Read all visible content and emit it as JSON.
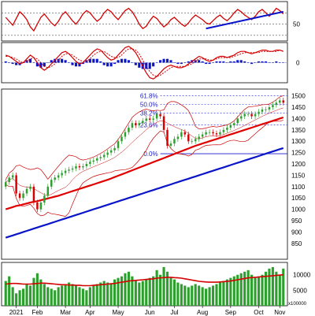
{
  "chart_data": [
    {
      "panel": "rsi",
      "type": "line",
      "y_ticks": [
        "50"
      ],
      "reference_levels": [
        70,
        50,
        30
      ],
      "series": [
        {
          "color": "#d40000",
          "values": [
            62,
            55,
            48,
            60,
            72,
            66,
            58,
            45,
            38,
            50,
            62,
            68,
            60,
            52,
            47,
            55,
            66,
            72,
            64,
            56,
            50,
            58,
            68,
            74,
            70,
            62,
            55,
            60,
            70,
            76,
            72,
            64,
            58,
            66,
            74,
            78,
            72,
            62,
            50,
            42,
            46,
            56,
            64,
            60,
            52,
            45,
            50,
            58,
            62,
            56,
            50,
            46,
            52,
            60,
            66,
            62,
            58,
            52,
            50,
            56,
            62,
            66,
            60,
            56,
            62,
            70,
            76,
            72,
            66,
            62,
            58,
            64,
            72,
            76,
            70,
            64,
            70,
            78,
            74,
            68
          ]
        },
        {
          "color": "#0a14c8",
          "values": [
            42,
            null,
            null,
            null,
            null,
            null,
            null,
            null,
            null,
            null,
            null,
            null,
            null,
            null,
            null,
            null,
            null,
            null,
            null,
            null,
            null,
            null,
            null,
            null,
            null,
            null,
            null,
            null,
            null,
            null,
            null,
            null,
            null,
            null,
            null,
            null,
            null,
            null,
            null,
            null,
            null,
            null,
            null,
            null,
            null,
            null,
            null,
            null,
            null,
            null,
            null,
            null,
            null,
            null,
            null,
            null,
            null,
            null,
            null,
            null,
            null,
            null,
            null,
            null,
            null,
            null,
            null,
            null,
            null,
            null,
            null,
            null,
            null,
            null,
            null,
            null,
            null,
            null,
            null,
            72
          ]
        }
      ]
    },
    {
      "panel": "macd",
      "type": "line",
      "y_ticks": [
        "0"
      ],
      "series": [
        {
          "color": "#d40000",
          "values": [
            6,
            5,
            3,
            1,
            -1,
            0,
            3,
            6,
            4,
            0,
            -4,
            -6,
            -4,
            -1,
            2,
            5,
            8,
            9,
            7,
            4,
            1,
            -1,
            0,
            3,
            6,
            9,
            11,
            10,
            7,
            4,
            2,
            3,
            6,
            9,
            12,
            13,
            11,
            8,
            3,
            -3,
            -8,
            -12,
            -13,
            -11,
            -8,
            -5,
            -3,
            -2,
            -3,
            -4,
            -4,
            -3,
            -1,
            1,
            3,
            5,
            4,
            2,
            1,
            2,
            4,
            5,
            5,
            4,
            5,
            6,
            8,
            9,
            9,
            8,
            7,
            8,
            9,
            10,
            10,
            9,
            9,
            10,
            10,
            9
          ]
        },
        {
          "color": "#d40000",
          "values": [
            5,
            5,
            4,
            3,
            1,
            0,
            1,
            3,
            4,
            3,
            0,
            -3,
            -4,
            -3,
            -1,
            2,
            5,
            7,
            7,
            6,
            4,
            2,
            1,
            1,
            3,
            6,
            8,
            9,
            9,
            7,
            5,
            4,
            4,
            6,
            9,
            11,
            11,
            10,
            7,
            2,
            -3,
            -7,
            -10,
            -11,
            -10,
            -8,
            -6,
            -4,
            -3,
            -3,
            -3,
            -3,
            -2,
            -1,
            1,
            3,
            3,
            3,
            2,
            2,
            3,
            4,
            4,
            4,
            4,
            5,
            6,
            7,
            8,
            8,
            8,
            8,
            8,
            9,
            9,
            9,
            9,
            9,
            10,
            9
          ]
        }
      ],
      "histogram": {
        "color": "#0a14c8",
        "values": [
          1,
          0,
          -1,
          -2,
          -2,
          0,
          2,
          3,
          0,
          -3,
          -4,
          -3,
          0,
          2,
          3,
          3,
          3,
          2,
          0,
          -2,
          -3,
          -3,
          -1,
          2,
          3,
          3,
          3,
          1,
          -2,
          -3,
          -3,
          -1,
          2,
          3,
          3,
          2,
          0,
          -2,
          -4,
          -5,
          -5,
          -5,
          -3,
          0,
          2,
          3,
          3,
          2,
          0,
          -1,
          -1,
          0,
          1,
          2,
          2,
          2,
          1,
          -1,
          -1,
          0,
          1,
          1,
          1,
          0,
          1,
          1,
          2,
          2,
          1,
          0,
          -1,
          0,
          1,
          1,
          1,
          0,
          0,
          1,
          0,
          0
        ]
      }
    },
    {
      "panel": "price",
      "type": "candlestick",
      "ylim": [
        780,
        1530
      ],
      "y_ticks": [
        "1500",
        "1450",
        "1400",
        "1350",
        "1300",
        "1250",
        "1200",
        "1150",
        "1100",
        "1050",
        "1000",
        "950",
        "900",
        "850"
      ],
      "x_tick_labels": [
        "2021",
        "Feb",
        "Mar",
        "Apr",
        "May",
        "Jun",
        "Jul",
        "Aug",
        "Sep",
        "Oct",
        "Nov"
      ],
      "annotations": [
        "61.8%",
        "50.0%",
        "38.2%",
        "23.6%",
        "0.0%"
      ],
      "fibonacci_levels": [
        1500,
        1462,
        1424,
        1372,
        1245
      ],
      "bullish_color": "#2ca02c",
      "bearish_color": "#d40000",
      "series": [
        {
          "type": "candles",
          "close": [
            1120,
            1140,
            1150,
            1070,
            1050,
            1070,
            1090,
            1100,
            1030,
            1000,
            1030,
            1060,
            1100,
            1130,
            1140,
            1150,
            1160,
            1170,
            1175,
            1180,
            1190,
            1185,
            1190,
            1200,
            1210,
            1215,
            1225,
            1230,
            1240,
            1250,
            1260,
            1270,
            1300,
            1320,
            1340,
            1360,
            1380,
            1370,
            1380,
            1390,
            1400,
            1395,
            1400,
            1420,
            1410,
            1350,
            1280,
            1290,
            1310,
            1320,
            1340,
            1330,
            1300,
            1300,
            1310,
            1320,
            1330,
            1340,
            1340,
            1335,
            1330,
            1340,
            1350,
            1360,
            1370,
            1380,
            1400,
            1410,
            1420,
            1420,
            1410,
            1420,
            1430,
            1440,
            1440,
            1450,
            1460,
            1470,
            1480,
            1470
          ],
          "open": [
            1100,
            1120,
            1140,
            1150,
            1070,
            1050,
            1070,
            1090,
            1100,
            1030,
            1000,
            1030,
            1060,
            1100,
            1130,
            1140,
            1150,
            1160,
            1170,
            1175,
            1180,
            1190,
            1185,
            1190,
            1200,
            1210,
            1215,
            1225,
            1230,
            1240,
            1250,
            1260,
            1270,
            1300,
            1320,
            1340,
            1360,
            1380,
            1370,
            1380,
            1390,
            1400,
            1395,
            1400,
            1420,
            1410,
            1350,
            1280,
            1290,
            1310,
            1320,
            1340,
            1330,
            1300,
            1300,
            1310,
            1320,
            1330,
            1340,
            1340,
            1335,
            1330,
            1340,
            1350,
            1360,
            1370,
            1380,
            1400,
            1410,
            1420,
            1420,
            1410,
            1420,
            1430,
            1440,
            1440,
            1450,
            1460,
            1470,
            1480
          ]
        },
        {
          "name": "",
          "color": "#e00000",
          "kind": "ma50",
          "values": [
            1000,
            1005,
            1010,
            1015,
            1018,
            1022,
            1026,
            1030,
            1033,
            1036,
            1040,
            1044,
            1048,
            1052,
            1056,
            1060,
            1065,
            1070,
            1075,
            1080,
            1085,
            1090,
            1095,
            1100,
            1105,
            1110,
            1115,
            1120,
            1125,
            1130,
            1136,
            1142,
            1148,
            1154,
            1160,
            1166,
            1172,
            1178,
            1184,
            1190,
            1196,
            1202,
            1208,
            1214,
            1220,
            1226,
            1232,
            1238,
            1244,
            1250,
            1256,
            1262,
            1268,
            1274,
            1280,
            1285,
            1290,
            1295,
            1300,
            1305,
            1310,
            1315,
            1320,
            1325,
            1330,
            1335,
            1340,
            1345,
            1350,
            1355,
            1360,
            1365,
            1370,
            1375,
            1380,
            1385,
            1390,
            1395,
            1400,
            1405
          ]
        },
        {
          "name": "",
          "color": "#0a14c8",
          "kind": "ma200",
          "values": [
            875,
            880,
            885,
            890,
            895,
            900,
            905,
            910,
            915,
            920,
            925,
            930,
            935,
            940,
            945,
            950,
            955,
            960,
            965,
            970,
            975,
            980,
            985,
            990,
            995,
            1000,
            1005,
            1010,
            1015,
            1020,
            1025,
            1030,
            1035,
            1040,
            1045,
            1050,
            1055,
            1060,
            1065,
            1070,
            1075,
            1080,
            1085,
            1090,
            1095,
            1100,
            1105,
            1110,
            1115,
            1120,
            1125,
            1130,
            1135,
            1140,
            1145,
            1150,
            1155,
            1160,
            1165,
            1170,
            1175,
            1180,
            1185,
            1190,
            1195,
            1200,
            1205,
            1210,
            1215,
            1220,
            1225,
            1230,
            1235,
            1240,
            1245,
            1250,
            1255,
            1260,
            1265,
            1270
          ]
        }
      ]
    },
    {
      "panel": "volume",
      "type": "bar",
      "y_ticks": [
        "10000",
        "5000"
      ],
      "scale_label": "x100000",
      "color": "#2ca02c",
      "ma_color": "#d40000",
      "values": [
        8000,
        9500,
        6000,
        4000,
        5000,
        5500,
        7000,
        6500,
        9000,
        10500,
        8500,
        7000,
        6000,
        5500,
        5000,
        6000,
        6500,
        7000,
        7500,
        7000,
        6500,
        6000,
        5500,
        5000,
        6000,
        6500,
        7000,
        7500,
        8000,
        7500,
        7000,
        8500,
        9000,
        9500,
        10500,
        11000,
        9500,
        8000,
        7500,
        8000,
        8500,
        9000,
        9500,
        11500,
        10000,
        12500,
        11000,
        9000,
        8500,
        7500,
        7000,
        6500,
        6000,
        6500,
        7000,
        6500,
        6000,
        5500,
        6000,
        6500,
        7000,
        7500,
        8000,
        8500,
        9000,
        9500,
        10000,
        10500,
        11000,
        11500,
        10000,
        9000,
        9500,
        10000,
        11000,
        12000,
        12500,
        11000,
        10000,
        12000
      ],
      "ma_values": [
        7000,
        7100,
        7200,
        7200,
        7100,
        7000,
        7000,
        7000,
        7100,
        7200,
        7300,
        7300,
        7200,
        7100,
        7000,
        6900,
        6800,
        6800,
        6700,
        6700,
        6600,
        6600,
        6500,
        6500,
        6500,
        6600,
        6700,
        6800,
        6900,
        7000,
        7100,
        7200,
        7400,
        7600,
        7800,
        8000,
        8100,
        8200,
        8300,
        8400,
        8500,
        8600,
        8700,
        8900,
        9000,
        9100,
        9200,
        9200,
        9100,
        9000,
        8900,
        8700,
        8500,
        8300,
        8100,
        7900,
        7800,
        7700,
        7600,
        7600,
        7600,
        7700,
        7800,
        7900,
        8000,
        8200,
        8400,
        8600,
        8800,
        9000,
        9100,
        9200,
        9300,
        9400,
        9500,
        9600,
        9700,
        9800,
        9900,
        10000
      ]
    }
  ]
}
